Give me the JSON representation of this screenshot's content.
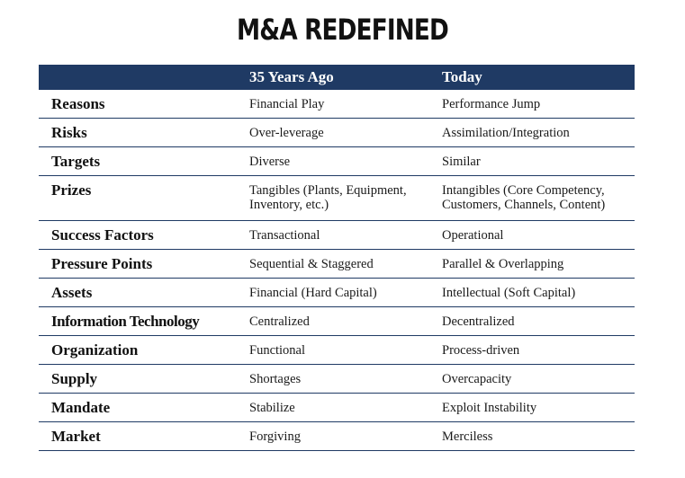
{
  "title": "M&A REDEFINED",
  "table": {
    "headers": [
      "",
      "35 Years Ago",
      "Today"
    ],
    "rows": [
      {
        "label": "Reasons",
        "past": "Financial Play",
        "today": "Performance Jump"
      },
      {
        "label": "Risks",
        "past": "Over-leverage",
        "today": "Assimilation/Integration"
      },
      {
        "label": "Targets",
        "past": "Diverse",
        "today": "Similar"
      },
      {
        "label": "Prizes",
        "past": "Tangibles (Plants, Equipment, Inventory, etc.)",
        "today": "Intangibles (Core Competency, Customers, Channels, Content)"
      },
      {
        "label": "Success Factors",
        "past": "Transactional",
        "today": "Operational"
      },
      {
        "label": "Pressure Points",
        "past": "Sequential & Staggered",
        "today": "Parallel & Overlapping"
      },
      {
        "label": "Assets",
        "past": "Financial (Hard Capital)",
        "today": "Intellectual (Soft Capital)"
      },
      {
        "label": "Information Technology",
        "past": "Centralized",
        "today": "Decentralized"
      },
      {
        "label": "Organization",
        "past": "Functional",
        "today": "Process-driven"
      },
      {
        "label": "Supply",
        "past": "Shortages",
        "today": "Overcapacity"
      },
      {
        "label": "Mandate",
        "past": "Stabilize",
        "today": "Exploit Instability"
      },
      {
        "label": "Market",
        "past": "Forgiving",
        "today": "Merciless"
      }
    ]
  }
}
